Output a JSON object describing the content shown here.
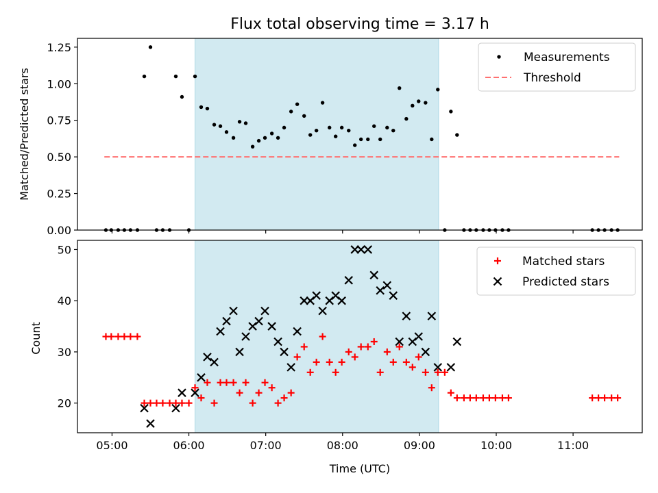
{
  "chart_data": {
    "title": "Flux total observing time = 3.17 h",
    "highlight_span": {
      "start": 6.08,
      "end": 9.25,
      "color": "#add8e6"
    },
    "x_axis": {
      "label": "Time (UTC)",
      "range": [
        4.55,
        11.9
      ],
      "ticks": [
        5,
        6,
        7,
        8,
        9,
        10,
        11
      ],
      "tick_labels": [
        "05:00",
        "06:00",
        "07:00",
        "08:00",
        "09:00",
        "10:00",
        "11:00"
      ]
    },
    "panels": [
      {
        "type": "scatter",
        "ylabel": "Matched/Predicted stars",
        "ylim": [
          0,
          1.31
        ],
        "yticks": [
          0,
          0.25,
          0.5,
          0.75,
          1.0,
          1.25
        ],
        "ytick_labels": [
          "0.00",
          "0.25",
          "0.50",
          "0.75",
          "1.00",
          "1.25"
        ],
        "legend_position": "top-right",
        "series": [
          {
            "name": "Measurements",
            "marker": "dot",
            "color": "#000000",
            "points": [
              [
                4.92,
                0
              ],
              [
                4.99,
                0
              ],
              [
                5.08,
                0
              ],
              [
                5.16,
                0
              ],
              [
                5.24,
                0
              ],
              [
                5.33,
                0
              ],
              [
                5.42,
                1.05
              ],
              [
                5.5,
                1.25
              ],
              [
                5.58,
                0
              ],
              [
                5.66,
                0
              ],
              [
                5.75,
                0
              ],
              [
                5.83,
                1.05
              ],
              [
                5.91,
                0.91
              ],
              [
                6.0,
                0
              ],
              [
                6.08,
                1.05
              ],
              [
                6.16,
                0.84
              ],
              [
                6.24,
                0.83
              ],
              [
                6.33,
                0.72
              ],
              [
                6.41,
                0.71
              ],
              [
                6.49,
                0.67
              ],
              [
                6.58,
                0.63
              ],
              [
                6.66,
                0.74
              ],
              [
                6.74,
                0.73
              ],
              [
                6.83,
                0.57
              ],
              [
                6.91,
                0.61
              ],
              [
                6.99,
                0.63
              ],
              [
                7.08,
                0.66
              ],
              [
                7.16,
                0.63
              ],
              [
                7.24,
                0.7
              ],
              [
                7.33,
                0.81
              ],
              [
                7.41,
                0.86
              ],
              [
                7.5,
                0.78
              ],
              [
                7.58,
                0.65
              ],
              [
                7.66,
                0.68
              ],
              [
                7.74,
                0.87
              ],
              [
                7.83,
                0.7
              ],
              [
                7.91,
                0.64
              ],
              [
                7.99,
                0.7
              ],
              [
                8.08,
                0.68
              ],
              [
                8.16,
                0.58
              ],
              [
                8.24,
                0.62
              ],
              [
                8.33,
                0.62
              ],
              [
                8.41,
                0.71
              ],
              [
                8.49,
                0.62
              ],
              [
                8.58,
                0.7
              ],
              [
                8.66,
                0.68
              ],
              [
                8.74,
                0.97
              ],
              [
                8.83,
                0.76
              ],
              [
                8.91,
                0.85
              ],
              [
                8.99,
                0.88
              ],
              [
                9.08,
                0.87
              ],
              [
                9.16,
                0.62
              ],
              [
                9.24,
                0.96
              ],
              [
                9.33,
                0
              ],
              [
                9.41,
                0.81
              ],
              [
                9.49,
                0.65
              ],
              [
                9.58,
                0
              ],
              [
                9.66,
                0
              ],
              [
                9.74,
                0
              ],
              [
                9.83,
                0
              ],
              [
                9.91,
                0
              ],
              [
                9.99,
                0
              ],
              [
                10.08,
                0
              ],
              [
                10.16,
                0
              ],
              [
                11.25,
                0
              ],
              [
                11.33,
                0
              ],
              [
                11.41,
                0
              ],
              [
                11.5,
                0
              ],
              [
                11.58,
                0
              ]
            ]
          },
          {
            "name": "Threshold",
            "marker": "dashed-line",
            "color": "#ff7070",
            "points": [
              [
                4.9,
                0.5
              ],
              [
                11.6,
                0.5
              ]
            ]
          }
        ]
      },
      {
        "type": "scatter",
        "ylabel": "Count",
        "ylim": [
          14.2,
          51.8
        ],
        "yticks": [
          20,
          30,
          40,
          50
        ],
        "ytick_labels": [
          "20",
          "30",
          "40",
          "50"
        ],
        "legend_position": "top-right",
        "series": [
          {
            "name": "Matched stars",
            "marker": "plus",
            "color": "#ff0000",
            "points": [
              [
                4.92,
                33
              ],
              [
                4.99,
                33
              ],
              [
                5.08,
                33
              ],
              [
                5.16,
                33
              ],
              [
                5.24,
                33
              ],
              [
                5.33,
                33
              ],
              [
                5.42,
                20
              ],
              [
                5.5,
                20
              ],
              [
                5.58,
                20
              ],
              [
                5.66,
                20
              ],
              [
                5.75,
                20
              ],
              [
                5.83,
                20
              ],
              [
                5.91,
                20
              ],
              [
                6.0,
                20
              ],
              [
                6.08,
                23
              ],
              [
                6.16,
                21
              ],
              [
                6.24,
                24
              ],
              [
                6.33,
                20
              ],
              [
                6.41,
                24
              ],
              [
                6.49,
                24
              ],
              [
                6.58,
                24
              ],
              [
                6.66,
                22
              ],
              [
                6.74,
                24
              ],
              [
                6.83,
                20
              ],
              [
                6.91,
                22
              ],
              [
                6.99,
                24
              ],
              [
                7.08,
                23
              ],
              [
                7.16,
                20
              ],
              [
                7.24,
                21
              ],
              [
                7.33,
                22
              ],
              [
                7.41,
                29
              ],
              [
                7.5,
                31
              ],
              [
                7.58,
                26
              ],
              [
                7.66,
                28
              ],
              [
                7.74,
                33
              ],
              [
                7.83,
                28
              ],
              [
                7.91,
                26
              ],
              [
                7.99,
                28
              ],
              [
                8.08,
                30
              ],
              [
                8.16,
                29
              ],
              [
                8.24,
                31
              ],
              [
                8.33,
                31
              ],
              [
                8.41,
                32
              ],
              [
                8.49,
                26
              ],
              [
                8.58,
                30
              ],
              [
                8.66,
                28
              ],
              [
                8.74,
                31
              ],
              [
                8.83,
                28
              ],
              [
                8.91,
                27
              ],
              [
                8.99,
                29
              ],
              [
                9.08,
                26
              ],
              [
                9.16,
                23
              ],
              [
                9.24,
                26
              ],
              [
                9.33,
                26
              ],
              [
                9.41,
                22
              ],
              [
                9.49,
                21
              ],
              [
                9.58,
                21
              ],
              [
                9.66,
                21
              ],
              [
                9.74,
                21
              ],
              [
                9.83,
                21
              ],
              [
                9.91,
                21
              ],
              [
                9.99,
                21
              ],
              [
                10.08,
                21
              ],
              [
                10.16,
                21
              ],
              [
                11.25,
                21
              ],
              [
                11.33,
                21
              ],
              [
                11.41,
                21
              ],
              [
                11.5,
                21
              ],
              [
                11.58,
                21
              ]
            ]
          },
          {
            "name": "Predicted stars",
            "marker": "x",
            "color": "#000000",
            "points": [
              [
                5.42,
                19
              ],
              [
                5.5,
                16
              ],
              [
                5.83,
                19
              ],
              [
                5.91,
                22
              ],
              [
                6.08,
                22
              ],
              [
                6.16,
                25
              ],
              [
                6.24,
                29
              ],
              [
                6.33,
                28
              ],
              [
                6.41,
                34
              ],
              [
                6.49,
                36
              ],
              [
                6.58,
                38
              ],
              [
                6.66,
                30
              ],
              [
                6.74,
                33
              ],
              [
                6.83,
                35
              ],
              [
                6.91,
                36
              ],
              [
                6.99,
                38
              ],
              [
                7.08,
                35
              ],
              [
                7.16,
                32
              ],
              [
                7.24,
                30
              ],
              [
                7.33,
                27
              ],
              [
                7.41,
                34
              ],
              [
                7.5,
                40
              ],
              [
                7.58,
                40
              ],
              [
                7.66,
                41
              ],
              [
                7.74,
                38
              ],
              [
                7.83,
                40
              ],
              [
                7.91,
                41
              ],
              [
                7.99,
                40
              ],
              [
                8.08,
                44
              ],
              [
                8.16,
                50
              ],
              [
                8.24,
                50
              ],
              [
                8.33,
                50
              ],
              [
                8.41,
                45
              ],
              [
                8.49,
                42
              ],
              [
                8.58,
                43
              ],
              [
                8.66,
                41
              ],
              [
                8.74,
                32
              ],
              [
                8.83,
                37
              ],
              [
                8.91,
                32
              ],
              [
                8.99,
                33
              ],
              [
                9.08,
                30
              ],
              [
                9.16,
                37
              ],
              [
                9.24,
                27
              ],
              [
                9.41,
                27
              ],
              [
                9.49,
                32
              ]
            ]
          }
        ]
      }
    ]
  }
}
